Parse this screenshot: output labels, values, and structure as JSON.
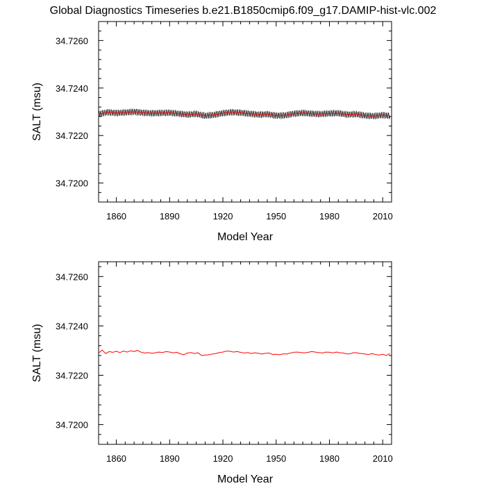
{
  "title": "Global Diagnostics Timeseries b.e21.B1850cmip6.f09_g17.DAMIP-hist-vlc.002",
  "colors": {
    "monthly": "#000000",
    "annual": "#ff0000"
  },
  "chart_data": [
    {
      "type": "line",
      "xlabel": "Model Year",
      "ylabel": "SALT (msu)",
      "xlim": [
        1850,
        2015
      ],
      "ylim": [
        34.7192,
        34.7268
      ],
      "xticks": [
        "1860",
        "1890",
        "1920",
        "1950",
        "1980",
        "2010"
      ],
      "yticks": [
        "34.7200",
        "34.7220",
        "34.7240",
        "34.7260"
      ],
      "series": [
        {
          "kind": "monthly",
          "seasonal_amplitude": 0.00012,
          "x": [
            1850,
            1855,
            1860,
            1865,
            1870,
            1875,
            1880,
            1885,
            1890,
            1895,
            1900,
            1905,
            1910,
            1915,
            1920,
            1925,
            1930,
            1935,
            1940,
            1945,
            1950,
            1955,
            1960,
            1965,
            1970,
            1975,
            1980,
            1985,
            1990,
            1995,
            2000,
            2005,
            2010,
            2014
          ],
          "values": [
            34.7229,
            34.72298,
            34.72295,
            34.72297,
            34.723,
            34.72296,
            34.72294,
            34.72295,
            34.72296,
            34.72292,
            34.72288,
            34.72291,
            34.72283,
            34.72287,
            34.72294,
            34.72298,
            34.72296,
            34.72292,
            34.72288,
            34.7229,
            34.72284,
            34.72285,
            34.72292,
            34.72295,
            34.72292,
            34.7229,
            34.72293,
            34.72294,
            34.72288,
            34.7229,
            34.72284,
            34.72282,
            34.72286,
            34.72283
          ]
        },
        {
          "kind": "annual",
          "x": [
            1850,
            1855,
            1860,
            1865,
            1870,
            1875,
            1880,
            1885,
            1890,
            1895,
            1900,
            1905,
            1910,
            1915,
            1920,
            1925,
            1930,
            1935,
            1940,
            1945,
            1950,
            1955,
            1960,
            1965,
            1970,
            1975,
            1980,
            1985,
            1990,
            1995,
            2000,
            2005,
            2010,
            2014
          ],
          "values": [
            34.7229,
            34.72298,
            34.72295,
            34.72297,
            34.723,
            34.72296,
            34.72294,
            34.72295,
            34.72296,
            34.72292,
            34.72288,
            34.72291,
            34.72283,
            34.72287,
            34.72294,
            34.72298,
            34.72296,
            34.72292,
            34.72288,
            34.7229,
            34.72284,
            34.72285,
            34.72292,
            34.72295,
            34.72292,
            34.7229,
            34.72293,
            34.72294,
            34.72288,
            34.7229,
            34.72284,
            34.72282,
            34.72286,
            34.72283
          ]
        }
      ]
    },
    {
      "type": "line",
      "xlabel": "Model Year",
      "ylabel": "SALT (msu)",
      "xlim": [
        1850,
        2015
      ],
      "ylim": [
        34.7192,
        34.7266
      ],
      "xticks": [
        "1860",
        "1890",
        "1920",
        "1950",
        "1980",
        "2010"
      ],
      "yticks": [
        "34.7200",
        "34.7220",
        "34.7240",
        "34.7260"
      ],
      "series": [
        {
          "kind": "annual",
          "x": [
            1850,
            1852,
            1854,
            1856,
            1858,
            1860,
            1862,
            1864,
            1866,
            1868,
            1870,
            1872,
            1874,
            1876,
            1878,
            1880,
            1882,
            1884,
            1886,
            1888,
            1890,
            1892,
            1894,
            1896,
            1898,
            1900,
            1902,
            1904,
            1906,
            1908,
            1910,
            1912,
            1914,
            1916,
            1918,
            1920,
            1922,
            1924,
            1926,
            1928,
            1930,
            1932,
            1934,
            1936,
            1938,
            1940,
            1942,
            1944,
            1946,
            1948,
            1950,
            1952,
            1954,
            1956,
            1958,
            1960,
            1962,
            1964,
            1966,
            1968,
            1970,
            1972,
            1974,
            1976,
            1978,
            1980,
            1982,
            1984,
            1986,
            1988,
            1990,
            1992,
            1994,
            1996,
            1998,
            2000,
            2002,
            2004,
            2006,
            2008,
            2010,
            2012,
            2014
          ],
          "values": [
            34.7229,
            34.72302,
            34.72288,
            34.72296,
            34.72293,
            34.72297,
            34.72292,
            34.72298,
            34.72294,
            34.72299,
            34.72296,
            34.72301,
            34.72293,
            34.7229,
            34.72292,
            34.72289,
            34.72291,
            34.72294,
            34.72292,
            34.72296,
            34.72294,
            34.72291,
            34.72293,
            34.72287,
            34.72283,
            34.7229,
            34.72292,
            34.72288,
            34.72291,
            34.7228,
            34.72282,
            34.72283,
            34.72286,
            34.72288,
            34.72292,
            34.72294,
            34.72298,
            34.72297,
            34.72294,
            34.72296,
            34.72293,
            34.7229,
            34.72292,
            34.72288,
            34.72291,
            34.72289,
            34.72286,
            34.72289,
            34.7229,
            34.72284,
            34.72285,
            34.72283,
            34.72287,
            34.72286,
            34.7229,
            34.72293,
            34.72294,
            34.72292,
            34.72291,
            34.72293,
            34.72296,
            34.72294,
            34.72292,
            34.7229,
            34.72294,
            34.72293,
            34.72291,
            34.72294,
            34.72291,
            34.7229,
            34.72286,
            34.72288,
            34.72292,
            34.7229,
            34.72288,
            34.72286,
            34.72284,
            34.72288,
            34.72284,
            34.72282,
            34.72285,
            34.7228,
            34.72288
          ]
        }
      ]
    }
  ]
}
